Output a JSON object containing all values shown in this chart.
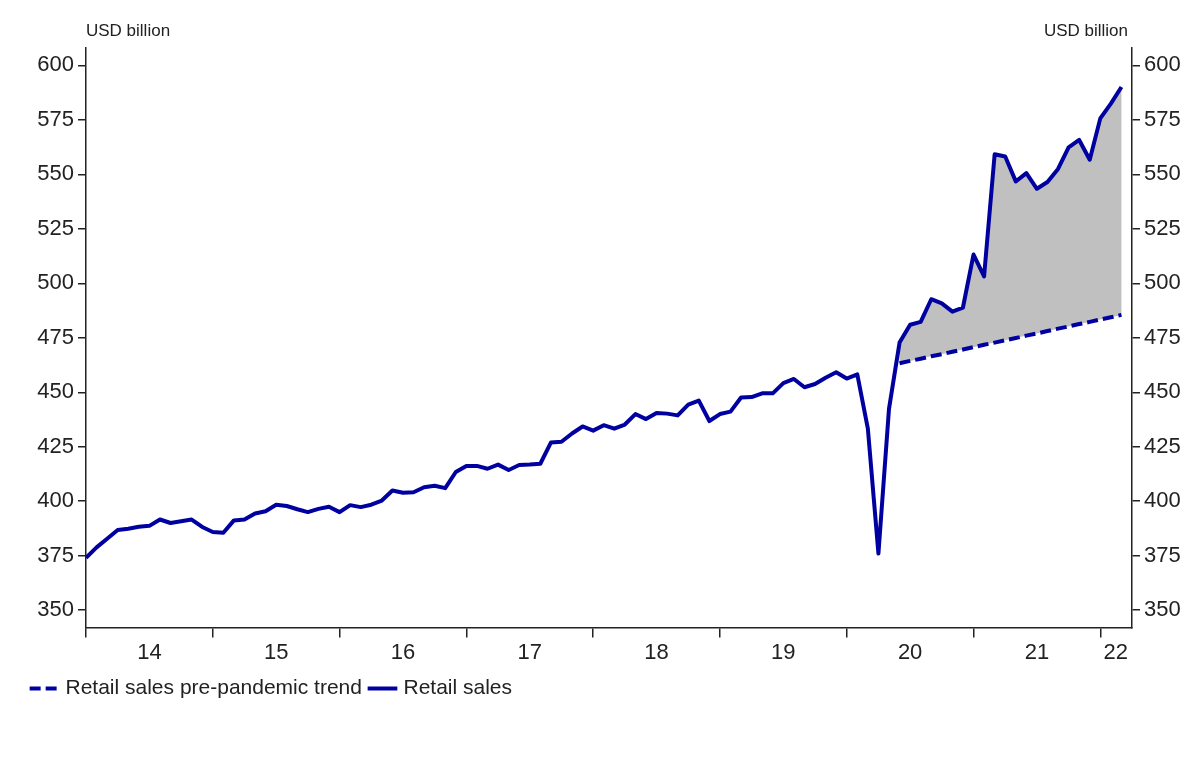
{
  "chart_data": {
    "type": "line",
    "ylabel": "USD billion",
    "y2label": "USD billion",
    "x": [
      "2014-01",
      "2014-02",
      "2014-03",
      "2014-04",
      "2014-05",
      "2014-06",
      "2014-07",
      "2014-08",
      "2014-09",
      "2014-10",
      "2014-11",
      "2014-12",
      "2015-01",
      "2015-02",
      "2015-03",
      "2015-04",
      "2015-05",
      "2015-06",
      "2015-07",
      "2015-08",
      "2015-09",
      "2015-10",
      "2015-11",
      "2015-12",
      "2016-01",
      "2016-02",
      "2016-03",
      "2016-04",
      "2016-05",
      "2016-06",
      "2016-07",
      "2016-08",
      "2016-09",
      "2016-10",
      "2016-11",
      "2016-12",
      "2017-01",
      "2017-02",
      "2017-03",
      "2017-04",
      "2017-05",
      "2017-06",
      "2017-07",
      "2017-08",
      "2017-09",
      "2017-10",
      "2017-11",
      "2017-12",
      "2018-01",
      "2018-02",
      "2018-03",
      "2018-04",
      "2018-05",
      "2018-06",
      "2018-07",
      "2018-08",
      "2018-09",
      "2018-10",
      "2018-11",
      "2018-12",
      "2019-01",
      "2019-02",
      "2019-03",
      "2019-04",
      "2019-05",
      "2019-06",
      "2019-07",
      "2019-08",
      "2019-09",
      "2019-10",
      "2019-11",
      "2019-12",
      "2020-01",
      "2020-02",
      "2020-03",
      "2020-04",
      "2020-05",
      "2020-06",
      "2020-07",
      "2020-08",
      "2020-09",
      "2020-10",
      "2020-11",
      "2020-12",
      "2021-01",
      "2021-02",
      "2021-03",
      "2021-04",
      "2021-05",
      "2021-06",
      "2021-07",
      "2021-08",
      "2021-09",
      "2021-10",
      "2021-11",
      "2021-12",
      "2022-01",
      "2022-02",
      "2022-03"
    ],
    "series": [
      {
        "name": "Retail sales pre-pandemic trend",
        "color": "#0000a0",
        "line_style": "dashed",
        "x": [
          "2020-06",
          "2020-07",
          "2020-08",
          "2020-09",
          "2020-10",
          "2020-11",
          "2020-12",
          "2021-01",
          "2021-02",
          "2021-03",
          "2021-04",
          "2021-05",
          "2021-06",
          "2021-07",
          "2021-08",
          "2021-09",
          "2021-10",
          "2021-11",
          "2021-12",
          "2022-01",
          "2022-02",
          "2022-03"
        ],
        "values": [
          463.3,
          464.4,
          465.4,
          466.5,
          467.5,
          468.6,
          469.6,
          470.7,
          471.8,
          472.8,
          473.9,
          474.9,
          476.0,
          477.0,
          478.1,
          479.2,
          480.2,
          481.3,
          482.3,
          483.4,
          484.4,
          485.5
        ],
        "lower": [
          463.3,
          464.4,
          465.4,
          466.5,
          467.5,
          468.6,
          469.6,
          470.7,
          471.8,
          472.8,
          473.9,
          474.9,
          476.0,
          477.0,
          478.1,
          479.2,
          480.2,
          481.3,
          482.3,
          483.4,
          484.4,
          485.5
        ],
        "upper": [
          472.8,
          481,
          482.3,
          492.7,
          490.8,
          487,
          488.9,
          513.2,
          503.2,
          559.2,
          558.2,
          546.8,
          550.6,
          543.4,
          546.5,
          552.5,
          562.4,
          565.8,
          556.7,
          575.7,
          582.5,
          590.1
        ]
      },
      {
        "name": "Retail sales",
        "color": "#0000a0",
        "values": [
          374,
          378.8,
          382.8,
          386.8,
          387.4,
          388.3,
          388.7,
          391.6,
          390,
          390.8,
          391.6,
          388.2,
          385.9,
          385.5,
          391.2,
          391.6,
          394.4,
          395.4,
          398.4,
          397.8,
          396.3,
          395,
          396.5,
          397.5,
          395,
          398.2,
          397.3,
          398.4,
          400.3,
          404.9,
          403.9,
          404.1,
          406.4,
          407.1,
          406,
          413.4,
          416.2,
          416.2,
          414.9,
          416.8,
          414.3,
          416.6,
          416.8,
          417.2,
          426.9,
          427.3,
          431.1,
          434.3,
          432.4,
          434.9,
          433.3,
          435.2,
          440,
          437.7,
          440.5,
          440.2,
          439.4,
          444.3,
          446.2,
          436.8,
          440,
          441.1,
          447.6,
          447.8,
          449.5,
          449.5,
          454.2,
          456.1,
          452.3,
          453.8,
          456.7,
          459.2,
          456.3,
          458.2,
          433.3,
          376,
          442.4,
          472.8,
          481,
          482.3,
          492.7,
          490.8,
          487,
          488.9,
          513.2,
          503.2,
          559.2,
          558.2,
          546.8,
          550.6,
          543.4,
          546.5,
          552.5,
          562.4,
          565.8,
          556.7,
          575.7,
          582.5,
          590.1
        ]
      }
    ],
    "xlim": [
      "2014-01-01",
      "2022-04-01"
    ],
    "xticks": [
      {
        "value": "2014-01-01",
        "label": null
      },
      {
        "value": "2014-07-01",
        "label": "14"
      },
      {
        "value": "2015-01-01",
        "label": null
      },
      {
        "value": "2015-07-01",
        "label": "15"
      },
      {
        "value": "2016-01-01",
        "label": null
      },
      {
        "value": "2016-07-01",
        "label": "16"
      },
      {
        "value": "2017-01-01",
        "label": null
      },
      {
        "value": "2017-07-01",
        "label": "17"
      },
      {
        "value": "2018-01-01",
        "label": null
      },
      {
        "value": "2018-07-01",
        "label": "18"
      },
      {
        "value": "2019-01-01",
        "label": null
      },
      {
        "value": "2019-07-01",
        "label": "19"
      },
      {
        "value": "2020-01-01",
        "label": null
      },
      {
        "value": "2020-07-01",
        "label": "20"
      },
      {
        "value": "2021-01-01",
        "label": null
      },
      {
        "value": "2021-07-01",
        "label": "21"
      },
      {
        "value": "2022-01-01",
        "label": null
      },
      {
        "value": "2022-02-15",
        "label": "22"
      }
    ],
    "ylim": [
      342,
      608
    ],
    "yticks": [
      350,
      375,
      400,
      425,
      450,
      475,
      500,
      525,
      550,
      575,
      600
    ],
    "y2lim": [
      342,
      608
    ],
    "y2ticks": [
      350,
      375,
      400,
      425,
      450,
      475,
      500,
      525,
      550,
      575,
      600
    ],
    "legend": "bottom left",
    "marker": "none",
    "line_style": "solid"
  }
}
